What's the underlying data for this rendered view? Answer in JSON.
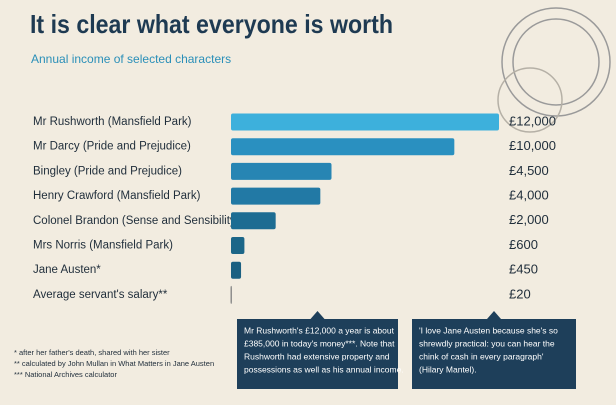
{
  "chart_data": {
    "type": "bar",
    "orientation": "horizontal",
    "title": "It is clear what everyone is worth",
    "subtitle": "Annual income of selected characters",
    "categories": [
      "Mr Rushworth (Mansfield Park)",
      "Mr Darcy (Pride and Prejudice)",
      "Bingley (Pride and Prejudice)",
      "Henry Crawford (Mansfield Park)",
      "Colonel Brandon (Sense and Sensibility)",
      "Mrs Norris (Mansfield Park)",
      "Jane Austen*",
      "Average servant's salary**"
    ],
    "values": [
      12000,
      10000,
      4500,
      4000,
      2000,
      600,
      450,
      20
    ],
    "value_labels": [
      "£12,000",
      "£10,000",
      "£4,500",
      "£4,000",
      "£2,000",
      "£600",
      "£450",
      "£20"
    ],
    "colors": [
      "#3db0dc",
      "#2a90c0",
      "#2785b3",
      "#2279a5",
      "#1d6c92",
      "#1c6688",
      "#1b6081",
      "#8a8a8a"
    ],
    "footnotes": [
      "*   after her father's death, shared with her sister",
      "**  calculated by John Mullan in What Matters in Jane Austen",
      "*** National Archives calculator"
    ],
    "annotations": [
      [
        "Mr Rushworth's £12,000 a year is about",
        "£385,000 in today's money***. Note that",
        "Rushworth had extensive property and",
        "possessions as well as his annual income."
      ],
      [
        "'I love Jane Austen because she's so",
        "shrewdly practical: you can hear the",
        "chink of cash in every paragraph'",
        "(Hilary Mantel)."
      ]
    ]
  }
}
